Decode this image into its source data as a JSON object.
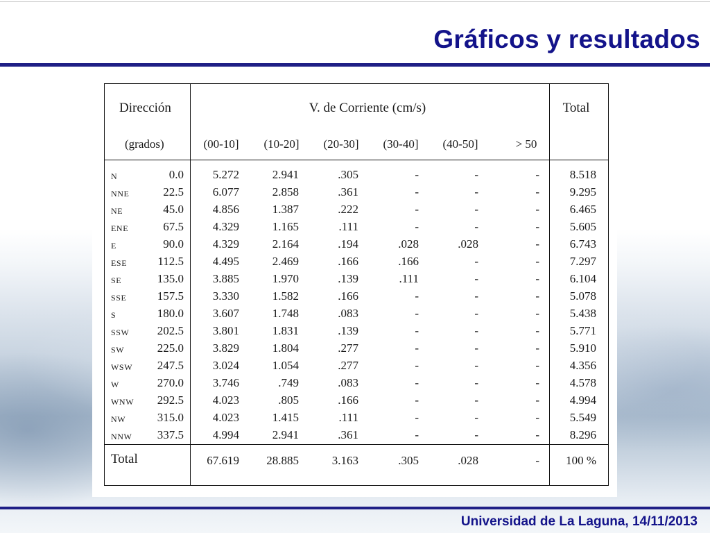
{
  "slide": {
    "title": "Gráficos y resultados",
    "footer": "Universidad de La Laguna,  14/11/2013"
  },
  "table": {
    "headers": {
      "direction": "Dirección",
      "direction_unit": "(grados)",
      "velocity": "V. de Corriente (cm/s)",
      "total": "Total",
      "bins": [
        "(00-10]",
        "(10-20]",
        "(20-30]",
        "(30-40]",
        "(40-50]",
        "> 50"
      ]
    },
    "rows": [
      {
        "code": "N",
        "deg": "0.0",
        "values": [
          "5.272",
          "2.941",
          ".305",
          "-",
          "-",
          "-"
        ],
        "total": "8.518"
      },
      {
        "code": "NNE",
        "deg": "22.5",
        "values": [
          "6.077",
          "2.858",
          ".361",
          "-",
          "-",
          "-"
        ],
        "total": "9.295"
      },
      {
        "code": "NE",
        "deg": "45.0",
        "values": [
          "4.856",
          "1.387",
          ".222",
          "-",
          "-",
          "-"
        ],
        "total": "6.465"
      },
      {
        "code": "ENE",
        "deg": "67.5",
        "values": [
          "4.329",
          "1.165",
          ".111",
          "-",
          "-",
          "-"
        ],
        "total": "5.605"
      },
      {
        "code": "E",
        "deg": "90.0",
        "values": [
          "4.329",
          "2.164",
          ".194",
          ".028",
          ".028",
          "-"
        ],
        "total": "6.743"
      },
      {
        "code": "ESE",
        "deg": "112.5",
        "values": [
          "4.495",
          "2.469",
          ".166",
          ".166",
          "-",
          "-"
        ],
        "total": "7.297"
      },
      {
        "code": "SE",
        "deg": "135.0",
        "values": [
          "3.885",
          "1.970",
          ".139",
          ".111",
          "-",
          "-"
        ],
        "total": "6.104"
      },
      {
        "code": "SSE",
        "deg": "157.5",
        "values": [
          "3.330",
          "1.582",
          ".166",
          "-",
          "-",
          "-"
        ],
        "total": "5.078"
      },
      {
        "code": "S",
        "deg": "180.0",
        "values": [
          "3.607",
          "1.748",
          ".083",
          "-",
          "-",
          "-"
        ],
        "total": "5.438"
      },
      {
        "code": "SSW",
        "deg": "202.5",
        "values": [
          "3.801",
          "1.831",
          ".139",
          "-",
          "-",
          "-"
        ],
        "total": "5.771"
      },
      {
        "code": "SW",
        "deg": "225.0",
        "values": [
          "3.829",
          "1.804",
          ".277",
          "-",
          "-",
          "-"
        ],
        "total": "5.910"
      },
      {
        "code": "WSW",
        "deg": "247.5",
        "values": [
          "3.024",
          "1.054",
          ".277",
          "-",
          "-",
          "-"
        ],
        "total": "4.356"
      },
      {
        "code": "W",
        "deg": "270.0",
        "values": [
          "3.746",
          ".749",
          ".083",
          "-",
          "-",
          "-"
        ],
        "total": "4.578"
      },
      {
        "code": "WNW",
        "deg": "292.5",
        "values": [
          "4.023",
          ".805",
          ".166",
          "-",
          "-",
          "-"
        ],
        "total": "4.994"
      },
      {
        "code": "NW",
        "deg": "315.0",
        "values": [
          "4.023",
          "1.415",
          ".111",
          "-",
          "-",
          "-"
        ],
        "total": "5.549"
      },
      {
        "code": "NNW",
        "deg": "337.5",
        "values": [
          "4.994",
          "2.941",
          ".361",
          "-",
          "-",
          "-"
        ],
        "total": "8.296"
      }
    ],
    "totals": {
      "label": "Total",
      "values": [
        "67.619",
        "28.885",
        "3.163",
        ".305",
        ".028",
        "-"
      ],
      "total": "100 %"
    }
  }
}
